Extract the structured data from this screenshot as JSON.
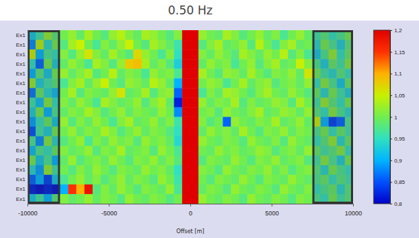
{
  "chart_data": {
    "type": "heatmap",
    "title": "0.50 Hz",
    "xlabel": "Offset [m]",
    "xlim": [
      -10000,
      10000
    ],
    "xticks": [
      -10000,
      -5000,
      0,
      5000,
      10000
    ],
    "categories": [
      "Ex1",
      "Ex1",
      "Ex1",
      "Ex1",
      "Ex1",
      "Ex1",
      "Ex1",
      "Ex1",
      "Ex1",
      "Ex1",
      "Ex1",
      "Ex1",
      "Ex1",
      "Ex1",
      "Ex1",
      "Ex1",
      "Ex1",
      "Ex1"
    ],
    "x": [
      -9750,
      -9250,
      -8750,
      -8250,
      -7750,
      -7250,
      -6750,
      -6250,
      -5750,
      -5250,
      -4750,
      -4250,
      -3750,
      -3250,
      -2750,
      -2250,
      -1750,
      -1250,
      -750,
      -250,
      250,
      750,
      1250,
      1750,
      2250,
      2750,
      3250,
      3750,
      4250,
      4750,
      5250,
      5750,
      6250,
      6750,
      7250,
      7750,
      8250,
      8750,
      9250,
      9750
    ],
    "z": [
      [
        0.92,
        0.96,
        1.02,
        0.98,
        1.0,
        1.02,
        0.99,
        1.03,
        1.0,
        0.98,
        1.02,
        1.04,
        1.01,
        0.99,
        1.03,
        1.02,
        1.0,
        0.98,
        1.01,
        1.2,
        1.2,
        1.02,
        1.0,
        0.99,
        1.03,
        1.01,
        0.98,
        1.0,
        1.02,
        0.99,
        1.01,
        0.97,
        1.0,
        1.02,
        0.99,
        0.96,
        0.98,
        0.95,
        0.97,
        1.0
      ],
      [
        0.88,
        1.04,
        0.94,
        1.0,
        0.98,
        1.03,
        1.05,
        1.0,
        0.97,
        1.01,
        0.99,
        1.02,
        1.05,
        1.0,
        0.98,
        1.03,
        1.01,
        0.99,
        0.96,
        1.2,
        1.2,
        0.98,
        1.01,
        1.03,
        0.99,
        1.0,
        1.02,
        0.98,
        1.04,
        1.0,
        0.97,
        1.01,
        1.03,
        0.99,
        1.0,
        0.94,
        1.0,
        0.97,
        0.93,
        0.98
      ],
      [
        1.05,
        0.9,
        0.97,
        0.95,
        1.01,
        0.98,
        1.02,
        1.06,
        1.01,
        0.99,
        1.03,
        1.0,
        0.98,
        1.07,
        1.02,
        1.0,
        0.97,
        1.01,
        0.95,
        1.2,
        1.2,
        1.01,
        0.99,
        1.02,
        1.0,
        0.98,
        1.03,
        1.01,
        0.99,
        1.02,
        1.0,
        1.04,
        0.98,
        1.01,
        0.97,
        0.92,
        0.97,
        1.02,
        0.95,
        0.99
      ],
      [
        0.95,
        0.86,
        1.0,
        0.93,
        0.99,
        1.02,
        1.0,
        0.97,
        1.03,
        1.01,
        0.98,
        1.02,
        1.08,
        1.09,
        1.03,
        0.99,
        1.01,
        0.98,
        0.93,
        1.2,
        1.2,
        0.99,
        1.02,
        1.0,
        1.01,
        0.97,
        1.0,
        1.02,
        0.98,
        1.01,
        1.03,
        0.99,
        1.0,
        1.05,
        1.01,
        0.97,
        0.93,
        0.99,
        0.96,
        1.01
      ],
      [
        0.9,
        0.98,
        0.92,
        1.0,
        1.02,
        0.99,
        1.01,
        1.03,
        0.98,
        1.0,
        1.04,
        0.99,
        1.01,
        1.0,
        0.97,
        1.02,
        1.0,
        1.01,
        0.97,
        1.2,
        1.2,
        1.03,
        1.0,
        0.98,
        1.02,
        1.01,
        0.99,
        1.03,
        1.0,
        0.98,
        1.01,
        1.0,
        1.02,
        0.99,
        1.06,
        1.0,
        0.96,
        0.94,
        0.98,
        0.95
      ],
      [
        1.02,
        0.93,
        0.96,
        0.98,
        0.97,
        1.01,
        1.03,
        0.99,
        1.02,
        1.05,
        1.0,
        0.98,
        1.02,
        1.01,
        0.99,
        1.04,
        1.02,
        0.99,
        0.9,
        1.2,
        1.2,
        1.0,
        1.02,
        1.01,
        0.97,
        1.0,
        1.03,
        0.99,
        1.01,
        1.02,
        0.98,
        1.0,
        1.01,
        0.99,
        1.02,
        0.95,
        1.01,
        0.97,
        0.92,
        0.99
      ],
      [
        0.87,
        0.99,
        0.94,
        0.91,
        1.0,
        1.03,
        0.98,
        1.01,
        1.0,
        0.99,
        1.02,
        1.06,
        0.99,
        1.0,
        1.03,
        0.98,
        1.01,
        1.02,
        0.86,
        1.2,
        1.2,
        0.97,
        1.01,
        0.99,
        1.03,
        1.02,
        1.0,
        0.98,
        1.01,
        1.03,
        1.0,
        0.99,
        1.02,
        1.0,
        0.98,
        0.99,
        0.94,
        1.0,
        0.96,
        0.93
      ],
      [
        0.96,
        0.91,
        1.01,
        0.95,
        1.01,
        0.99,
        1.02,
        1.0,
        0.97,
        1.03,
        1.01,
        0.99,
        1.0,
        1.02,
        0.98,
        1.01,
        1.03,
        0.99,
        0.82,
        1.2,
        1.2,
        1.02,
        0.99,
        1.01,
        1.0,
        1.03,
        0.98,
        1.01,
        0.99,
        1.0,
        1.02,
        1.01,
        0.98,
        1.03,
        1.0,
        0.96,
        1.02,
        0.98,
        0.95,
        1.0
      ],
      [
        0.93,
        1.0,
        0.9,
        0.97,
        0.99,
        1.01,
        1.0,
        1.03,
        1.01,
        0.98,
        1.0,
        1.02,
        0.99,
        1.01,
        1.0,
        0.99,
        1.02,
        1.0,
        0.88,
        1.2,
        1.2,
        1.0,
        1.01,
        0.98,
        1.02,
        1.0,
        0.99,
        1.01,
        1.03,
        0.99,
        1.0,
        1.02,
        1.01,
        0.99,
        1.02,
        0.98,
        0.95,
        1.01,
        0.97,
        0.94
      ],
      [
        0.89,
        0.95,
        0.99,
        0.92,
        1.02,
        0.98,
        1.01,
        0.99,
        1.02,
        1.0,
        0.97,
        1.01,
        1.03,
        0.99,
        1.0,
        1.02,
        0.99,
        1.01,
        0.96,
        1.2,
        1.2,
        1.01,
        0.98,
        1.0,
        0.86,
        1.02,
        1.0,
        0.99,
        1.01,
        1.0,
        1.03,
        0.99,
        1.0,
        1.02,
        0.99,
        1.05,
        0.9,
        0.84,
        0.86,
        0.97
      ],
      [
        0.85,
        0.96,
        0.93,
        1.0,
        1.0,
        1.02,
        0.99,
        1.01,
        1.0,
        1.03,
        1.01,
        0.98,
        1.0,
        1.02,
        0.99,
        1.01,
        1.0,
        0.98,
        0.95,
        1.2,
        1.2,
        0.99,
        1.02,
        1.0,
        1.01,
        0.99,
        1.03,
        1.0,
        0.98,
        1.01,
        1.0,
        1.02,
        0.99,
        1.01,
        1.0,
        0.97,
        1.0,
        0.95,
        0.99,
        0.96
      ],
      [
        0.97,
        0.88,
        1.01,
        0.94,
        0.98,
        1.0,
        1.02,
        0.97,
        1.01,
        0.99,
        1.02,
        1.0,
        1.01,
        0.98,
        1.02,
        1.0,
        1.01,
        0.99,
        0.94,
        1.2,
        1.2,
        1.02,
        1.0,
        0.99,
        1.01,
        1.0,
        0.98,
        1.02,
        1.0,
        0.99,
        1.01,
        0.98,
        1.02,
        1.0,
        0.99,
        0.95,
        0.98,
        1.02,
        0.94,
        0.99
      ],
      [
        0.91,
        0.97,
        0.95,
        0.99,
        1.01,
        0.99,
        1.0,
        1.02,
        0.98,
        1.01,
        1.0,
        1.03,
        0.99,
        1.0,
        1.01,
        0.98,
        1.02,
        1.0,
        0.97,
        1.2,
        1.2,
        1.0,
        0.99,
        1.02,
        1.0,
        1.01,
        0.99,
        1.0,
        1.02,
        1.01,
        0.98,
        1.0,
        1.01,
        0.99,
        1.02,
        0.99,
        0.96,
        0.98,
        1.01,
        0.95
      ],
      [
        1.0,
        0.92,
        0.97,
        0.9,
        0.99,
        1.02,
        0.98,
        1.0,
        1.01,
        0.99,
        1.02,
        1.0,
        0.98,
        1.01,
        1.0,
        1.02,
        0.99,
        1.01,
        0.98,
        1.2,
        1.2,
        0.98,
        1.01,
        1.0,
        0.99,
        1.02,
        1.0,
        0.98,
        1.01,
        1.0,
        1.02,
        0.99,
        1.0,
        1.01,
        0.98,
        0.96,
        1.01,
        0.97,
        0.93,
        1.0
      ],
      [
        0.94,
        0.89,
        1.02,
        0.96,
        1.0,
        0.98,
        1.01,
        0.99,
        1.02,
        1.0,
        0.98,
        1.01,
        1.0,
        0.99,
        1.02,
        1.0,
        1.01,
        0.99,
        0.95,
        1.2,
        1.2,
        1.01,
        1.0,
        0.98,
        1.02,
        1.0,
        0.99,
        1.01,
        1.0,
        1.02,
        0.99,
        1.01,
        0.98,
        1.0,
        1.01,
        0.98,
        0.94,
        1.0,
        0.97,
        0.95
      ],
      [
        0.86,
        0.9,
        0.84,
        0.92,
        0.97,
        1.0,
        1.02,
        0.99,
        1.01,
        0.98,
        1.0,
        1.02,
        0.99,
        1.01,
        1.0,
        0.98,
        1.02,
        1.0,
        0.96,
        1.2,
        1.2,
        1.0,
        0.98,
        1.01,
        1.0,
        0.99,
        1.02,
        1.0,
        0.98,
        1.01,
        1.0,
        0.99,
        1.02,
        1.0,
        0.99,
        0.97,
        0.99,
        0.95,
        0.98,
        0.96
      ],
      [
        0.82,
        0.81,
        0.82,
        0.81,
        0.9,
        1.15,
        1.1,
        1.18,
        0.98,
        1.01,
        0.99,
        1.02,
        1.0,
        0.98,
        1.01,
        1.0,
        0.99,
        1.02,
        0.97,
        1.2,
        1.2,
        0.99,
        1.01,
        1.0,
        0.98,
        1.02,
        1.0,
        0.99,
        1.01,
        1.0,
        0.98,
        1.02,
        1.0,
        0.99,
        1.01,
        0.95,
        0.97,
        0.99,
        0.94,
        0.98
      ],
      [
        0.92,
        0.96,
        0.9,
        0.98,
        1.01,
        0.99,
        1.0,
        1.02,
        0.99,
        1.01,
        1.0,
        0.98,
        1.02,
        1.0,
        0.99,
        1.01,
        1.0,
        0.98,
        1.0,
        1.2,
        1.2,
        1.02,
        1.0,
        0.99,
        1.01,
        1.0,
        0.98,
        1.02,
        1.0,
        0.99,
        1.01,
        1.0,
        0.98,
        1.01,
        1.0,
        0.97,
        0.95,
        1.0,
        0.96,
        0.98
      ]
    ],
    "colorbar_lim": [
      0.8,
      1.2
    ],
    "colorbar_ticks": [
      {
        "value": 0.8,
        "label": "0,8"
      },
      {
        "value": 0.85,
        "label": "0,85"
      },
      {
        "value": 0.9,
        "label": "0,9"
      },
      {
        "value": 0.95,
        "label": "0,95"
      },
      {
        "value": 1,
        "label": "1"
      },
      {
        "value": 1.05,
        "label": "1,05"
      },
      {
        "value": 1.1,
        "label": "1,1"
      },
      {
        "value": 1.15,
        "label": "1,15"
      },
      {
        "value": 1.2,
        "label": "1,2"
      }
    ],
    "boxes": [
      [
        -10000,
        -8000
      ],
      [
        7500,
        10000
      ]
    ]
  }
}
